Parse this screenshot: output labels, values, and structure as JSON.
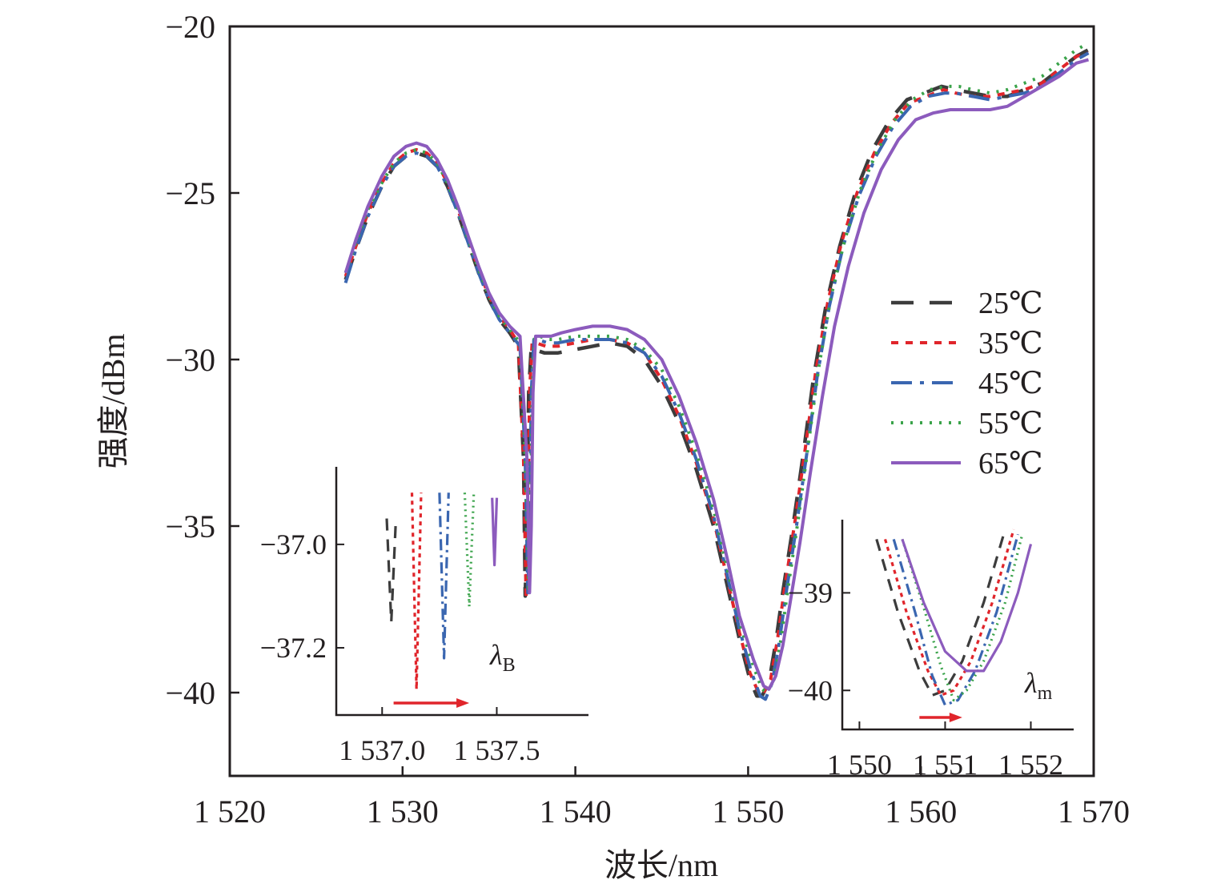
{
  "chart_data": [
    {
      "type": "line",
      "xlabel": "波长/nm",
      "ylabel": "强度/dBm",
      "xlim": [
        1520,
        1570
      ],
      "ylim": [
        -42.5,
        -20
      ],
      "xticks": [
        1520,
        1530,
        1540,
        1550,
        1560,
        1570
      ],
      "xtick_labels": [
        "1 520",
        "1 530",
        "1 540",
        "1 550",
        "1 560",
        "1 570"
      ],
      "yticks": [
        -20,
        -25,
        -30,
        -35,
        -40
      ],
      "ytick_labels": [
        "−20",
        "−25",
        "−30",
        "−35",
        "−40"
      ],
      "grid": false,
      "legend_position": "right",
      "series": [
        {
          "name": "25℃",
          "color": "#3c3c3c",
          "dash": "28,20",
          "width": 4.5,
          "x": [
            1526.7,
            1527.3,
            1528.0,
            1528.8,
            1529.5,
            1530.2,
            1530.8,
            1531.4,
            1532.0,
            1532.6,
            1533.2,
            1533.8,
            1534.4,
            1535.0,
            1535.6,
            1536.2,
            1536.7,
            1537.0,
            1537.1,
            1537.2,
            1537.3,
            1537.45,
            1537.6,
            1538.2,
            1539.0,
            1540.0,
            1541.0,
            1542.0,
            1543.0,
            1544.0,
            1545.0,
            1546.0,
            1547.0,
            1548.0,
            1548.8,
            1549.5,
            1550.1,
            1550.5,
            1550.8,
            1551.2,
            1551.6,
            1552.0,
            1552.6,
            1553.2,
            1553.8,
            1554.5,
            1555.3,
            1556.2,
            1557.2,
            1558.2,
            1559.2,
            1560.2,
            1561.2,
            1562.0,
            1563.0,
            1564.0,
            1565.0,
            1566.0,
            1567.0,
            1568.0,
            1569.0,
            1569.7
          ],
          "y": [
            -27.6,
            -26.7,
            -25.7,
            -24.8,
            -24.2,
            -23.9,
            -23.8,
            -23.9,
            -24.2,
            -24.8,
            -25.6,
            -26.5,
            -27.4,
            -28.2,
            -28.8,
            -29.2,
            -29.6,
            -33.0,
            -37.1,
            -35.0,
            -31.0,
            -29.6,
            -29.7,
            -29.8,
            -29.8,
            -29.7,
            -29.6,
            -29.5,
            -29.6,
            -30.0,
            -30.8,
            -31.9,
            -33.3,
            -35.0,
            -36.8,
            -38.4,
            -39.6,
            -40.1,
            -40.1,
            -39.7,
            -38.5,
            -37.0,
            -35.0,
            -32.8,
            -30.5,
            -28.4,
            -26.6,
            -25.0,
            -23.7,
            -22.8,
            -22.2,
            -22.0,
            -21.8,
            -21.9,
            -22.0,
            -22.1,
            -22.1,
            -21.9,
            -21.7,
            -21.3,
            -20.9,
            -20.7
          ]
        },
        {
          "name": "35℃",
          "color": "#e0252b",
          "dash": "9,9",
          "width": 4,
          "x": [
            1526.7,
            1527.3,
            1528.0,
            1528.8,
            1529.5,
            1530.2,
            1530.8,
            1531.4,
            1532.0,
            1532.6,
            1533.2,
            1533.8,
            1534.4,
            1535.0,
            1535.6,
            1536.2,
            1536.7,
            1537.0,
            1537.15,
            1537.25,
            1537.35,
            1537.5,
            1537.7,
            1538.3,
            1539.0,
            1540.0,
            1541.0,
            1542.0,
            1543.0,
            1544.0,
            1545.0,
            1546.0,
            1547.0,
            1548.0,
            1548.8,
            1549.5,
            1550.1,
            1550.6,
            1550.9,
            1551.3,
            1551.7,
            1552.1,
            1552.7,
            1553.3,
            1553.9,
            1554.6,
            1555.4,
            1556.3,
            1557.3,
            1558.3,
            1559.3,
            1560.3,
            1561.3,
            1562.0,
            1563.0,
            1564.0,
            1565.0,
            1566.0,
            1567.0,
            1568.0,
            1569.0,
            1569.7
          ],
          "y": [
            -27.5,
            -26.6,
            -25.6,
            -24.7,
            -24.1,
            -23.8,
            -23.7,
            -23.8,
            -24.1,
            -24.7,
            -25.5,
            -26.4,
            -27.3,
            -28.1,
            -28.7,
            -29.1,
            -29.5,
            -33.0,
            -37.2,
            -35.0,
            -31.0,
            -29.5,
            -29.5,
            -29.6,
            -29.6,
            -29.5,
            -29.4,
            -29.4,
            -29.5,
            -29.8,
            -30.6,
            -31.7,
            -33.1,
            -34.8,
            -36.6,
            -38.2,
            -39.4,
            -40.0,
            -40.0,
            -39.6,
            -38.4,
            -36.9,
            -34.9,
            -32.7,
            -30.4,
            -28.3,
            -26.5,
            -25.0,
            -23.8,
            -22.9,
            -22.3,
            -22.1,
            -21.9,
            -22.0,
            -22.1,
            -22.1,
            -22.0,
            -21.9,
            -21.7,
            -21.3,
            -20.9,
            -20.8
          ]
        },
        {
          "name": "45℃",
          "color": "#3a66b0",
          "dash": "26,10,5,10",
          "width": 4,
          "x": [
            1526.7,
            1527.3,
            1528.0,
            1528.8,
            1529.5,
            1530.2,
            1530.8,
            1531.4,
            1532.0,
            1532.6,
            1533.2,
            1533.8,
            1534.4,
            1535.0,
            1535.6,
            1536.2,
            1536.8,
            1537.1,
            1537.25,
            1537.35,
            1537.45,
            1537.6,
            1537.8,
            1538.4,
            1539.0,
            1540.0,
            1541.0,
            1542.0,
            1543.0,
            1544.0,
            1545.0,
            1546.0,
            1547.0,
            1548.0,
            1548.8,
            1549.5,
            1550.2,
            1550.7,
            1551.0,
            1551.4,
            1551.8,
            1552.2,
            1552.8,
            1553.4,
            1554.0,
            1554.7,
            1555.5,
            1556.4,
            1557.4,
            1558.4,
            1559.4,
            1560.4,
            1561.4,
            1562.0,
            1563.0,
            1564.0,
            1565.0,
            1566.0,
            1567.0,
            1568.0,
            1569.0,
            1569.7
          ],
          "y": [
            -27.7,
            -26.7,
            -25.7,
            -24.8,
            -24.2,
            -23.9,
            -23.8,
            -23.9,
            -24.2,
            -24.8,
            -25.6,
            -26.5,
            -27.4,
            -28.2,
            -28.8,
            -29.2,
            -29.6,
            -33.0,
            -37.0,
            -35.0,
            -31.0,
            -29.4,
            -29.4,
            -29.5,
            -29.5,
            -29.4,
            -29.4,
            -29.4,
            -29.5,
            -29.8,
            -30.5,
            -31.6,
            -33.0,
            -34.7,
            -36.5,
            -38.1,
            -39.4,
            -40.1,
            -40.2,
            -39.7,
            -38.5,
            -37.0,
            -35.0,
            -32.8,
            -30.5,
            -28.4,
            -26.6,
            -25.1,
            -23.9,
            -23.0,
            -22.4,
            -22.1,
            -22.0,
            -22.0,
            -22.1,
            -22.2,
            -22.1,
            -22.0,
            -21.8,
            -21.4,
            -21.0,
            -20.8
          ]
        },
        {
          "name": "55℃",
          "color": "#3aa34a",
          "dash": "3,9",
          "width": 4,
          "x": [
            1526.7,
            1527.3,
            1528.0,
            1528.8,
            1529.5,
            1530.2,
            1530.8,
            1531.4,
            1532.0,
            1532.6,
            1533.2,
            1533.8,
            1534.4,
            1535.0,
            1535.6,
            1536.2,
            1536.8,
            1537.1,
            1537.3,
            1537.4,
            1537.5,
            1537.65,
            1537.9,
            1538.5,
            1539.0,
            1540.0,
            1541.0,
            1542.0,
            1543.0,
            1544.0,
            1545.0,
            1546.0,
            1547.0,
            1548.0,
            1548.8,
            1549.5,
            1550.3,
            1550.8,
            1551.1,
            1551.5,
            1551.9,
            1552.3,
            1552.9,
            1553.5,
            1554.1,
            1554.8,
            1555.6,
            1556.5,
            1557.5,
            1558.5,
            1559.5,
            1560.5,
            1561.5,
            1562.2,
            1563.0,
            1564.0,
            1565.0,
            1566.0,
            1567.0,
            1568.0,
            1569.0,
            1569.7
          ],
          "y": [
            -27.4,
            -26.5,
            -25.5,
            -24.7,
            -24.1,
            -23.8,
            -23.7,
            -23.8,
            -24.1,
            -24.7,
            -25.5,
            -26.4,
            -27.3,
            -28.1,
            -28.7,
            -29.1,
            -29.5,
            -33.0,
            -37.0,
            -35.0,
            -31.0,
            -29.3,
            -29.3,
            -29.4,
            -29.4,
            -29.3,
            -29.3,
            -29.3,
            -29.4,
            -29.7,
            -30.3,
            -31.4,
            -32.8,
            -34.5,
            -36.3,
            -37.9,
            -39.2,
            -39.9,
            -40.0,
            -39.6,
            -38.4,
            -36.9,
            -34.8,
            -32.5,
            -30.2,
            -28.1,
            -26.4,
            -24.9,
            -23.7,
            -22.8,
            -22.2,
            -21.9,
            -21.8,
            -21.8,
            -21.9,
            -22.0,
            -21.9,
            -21.7,
            -21.5,
            -21.1,
            -20.7,
            -20.5
          ]
        },
        {
          "name": "65℃",
          "color": "#8c5bbd",
          "dash": "",
          "width": 4,
          "x": [
            1526.7,
            1527.3,
            1528.0,
            1528.8,
            1529.5,
            1530.2,
            1530.8,
            1531.4,
            1532.0,
            1532.6,
            1533.2,
            1533.8,
            1534.4,
            1535.0,
            1535.6,
            1536.2,
            1536.8,
            1537.2,
            1537.35,
            1537.45,
            1537.55,
            1537.7,
            1538.0,
            1538.6,
            1539.2,
            1540.0,
            1541.0,
            1542.0,
            1543.0,
            1544.0,
            1545.0,
            1546.0,
            1547.0,
            1548.0,
            1548.8,
            1549.5,
            1550.3,
            1550.9,
            1551.2,
            1551.6,
            1552.0,
            1552.4,
            1553.0,
            1553.6,
            1554.3,
            1555.0,
            1555.8,
            1556.7,
            1557.7,
            1558.7,
            1559.7,
            1560.7,
            1561.7,
            1562.5,
            1563.3,
            1564.0,
            1565.0,
            1566.0,
            1567.0,
            1568.0,
            1569.0,
            1569.7
          ],
          "y": [
            -27.4,
            -26.4,
            -25.4,
            -24.5,
            -23.9,
            -23.6,
            -23.5,
            -23.6,
            -24.0,
            -24.6,
            -25.4,
            -26.3,
            -27.2,
            -28.0,
            -28.6,
            -29.0,
            -29.3,
            -33.0,
            -37.0,
            -35.0,
            -31.0,
            -29.3,
            -29.3,
            -29.3,
            -29.2,
            -29.1,
            -29.0,
            -29.0,
            -29.1,
            -29.4,
            -30.0,
            -31.1,
            -32.5,
            -34.2,
            -36.0,
            -37.7,
            -39.0,
            -39.8,
            -39.9,
            -39.5,
            -38.6,
            -37.4,
            -35.5,
            -33.4,
            -31.1,
            -29.0,
            -27.2,
            -25.6,
            -24.3,
            -23.4,
            -22.8,
            -22.6,
            -22.5,
            -22.5,
            -22.5,
            -22.5,
            -22.4,
            -22.1,
            -21.8,
            -21.5,
            -21.1,
            -21.0
          ]
        }
      ]
    },
    {
      "type": "line",
      "title": "",
      "annotation": "λB",
      "xlim": [
        1536.8,
        1537.9
      ],
      "ylim": [
        -37.33,
        -36.85
      ],
      "xticks": [
        1537.0,
        1537.5
      ],
      "xtick_labels": [
        "1 537.0",
        "1 537.5"
      ],
      "yticks": [
        -37.0,
        -37.2
      ],
      "ytick_labels": [
        "−37.0",
        "−37.2"
      ],
      "arrow_color": "#e0252b",
      "arrow_from": 1537.05,
      "arrow_to": 1537.38,
      "series": [
        {
          "name": "25℃",
          "x": [
            1537.02,
            1537.04,
            1537.06
          ],
          "y": [
            -36.95,
            -37.15,
            -36.95
          ]
        },
        {
          "name": "35℃",
          "x": [
            1537.13,
            1537.15,
            1537.17
          ],
          "y": [
            -36.9,
            -37.28,
            -36.9
          ]
        },
        {
          "name": "45℃",
          "x": [
            1537.25,
            1537.27,
            1537.29
          ],
          "y": [
            -36.9,
            -37.22,
            -36.9
          ]
        },
        {
          "name": "55℃",
          "x": [
            1537.36,
            1537.38,
            1537.4
          ],
          "y": [
            -36.9,
            -37.12,
            -36.9
          ]
        },
        {
          "name": "65℃",
          "x": [
            1537.48,
            1537.49,
            1537.5
          ],
          "y": [
            -36.91,
            -37.04,
            -36.91
          ]
        }
      ]
    },
    {
      "type": "line",
      "title": "",
      "annotation": "λm",
      "xlim": [
        1549.8,
        1552.5
      ],
      "ylim": [
        -40.4,
        -38.25
      ],
      "xticks": [
        1550,
        1551,
        1552
      ],
      "xtick_labels": [
        "1 550",
        "1 551",
        "1 552"
      ],
      "yticks": [
        -39,
        -40
      ],
      "ytick_labels": [
        "−39",
        "−40"
      ],
      "arrow_color": "#e0252b",
      "arrow_from": 1550.7,
      "arrow_to": 1551.2,
      "series": [
        {
          "name": "25℃",
          "x": [
            1550.2,
            1550.45,
            1550.7,
            1550.85,
            1551.0,
            1551.2,
            1551.45,
            1551.7
          ],
          "y": [
            -38.45,
            -39.2,
            -39.8,
            -40.05,
            -40.0,
            -39.7,
            -39.1,
            -38.35
          ]
        },
        {
          "name": "35℃",
          "x": [
            1550.3,
            1550.55,
            1550.8,
            1550.95,
            1551.1,
            1551.3,
            1551.55,
            1551.8
          ],
          "y": [
            -38.45,
            -39.2,
            -39.8,
            -40.05,
            -40.0,
            -39.7,
            -39.1,
            -38.35
          ]
        },
        {
          "name": "45℃",
          "x": [
            1550.4,
            1550.65,
            1550.85,
            1551.0,
            1551.15,
            1551.35,
            1551.6,
            1551.85
          ],
          "y": [
            -38.45,
            -39.2,
            -39.85,
            -40.15,
            -40.1,
            -39.8,
            -39.2,
            -38.4
          ]
        },
        {
          "name": "55℃",
          "x": [
            1550.5,
            1550.75,
            1550.95,
            1551.1,
            1551.25,
            1551.45,
            1551.7,
            1551.9
          ],
          "y": [
            -38.45,
            -39.15,
            -39.75,
            -40.1,
            -40.0,
            -39.7,
            -39.1,
            -38.4
          ]
        },
        {
          "name": "65℃",
          "x": [
            1550.5,
            1550.75,
            1551.0,
            1551.25,
            1551.45,
            1551.65,
            1551.85,
            1552.0
          ],
          "y": [
            -38.45,
            -39.1,
            -39.6,
            -39.8,
            -39.8,
            -39.5,
            -39.0,
            -38.5
          ]
        }
      ]
    }
  ]
}
